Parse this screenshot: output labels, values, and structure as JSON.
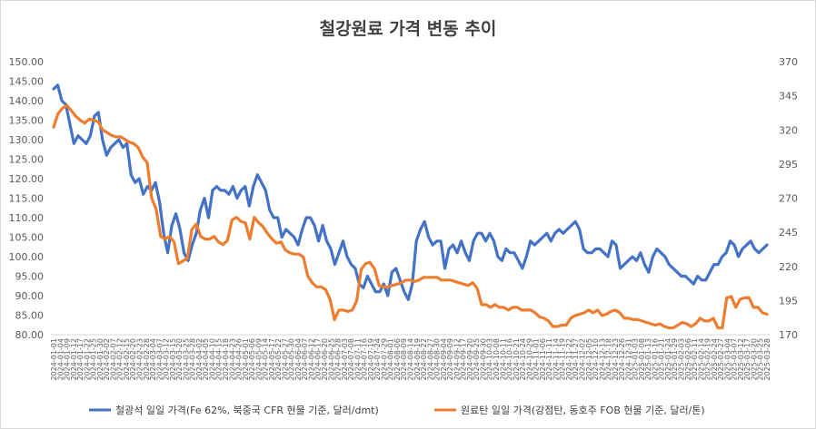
{
  "chart_data": {
    "type": "line",
    "title": "철강원료 가격 변동 추이",
    "y_left": {
      "min": 80,
      "max": 150,
      "ticks": [
        "150.00",
        "145.00",
        "140.00",
        "135.00",
        "130.00",
        "125.00",
        "120.00",
        "115.00",
        "110.00",
        "105.00",
        "100.00",
        "95.00",
        "90.00",
        "85.00",
        "80.00"
      ]
    },
    "y_right": {
      "min": 170,
      "max": 370,
      "ticks": [
        "370",
        "345",
        "320",
        "295",
        "270",
        "245",
        "220",
        "195",
        "170"
      ]
    },
    "x_range": [
      "2024-01-01",
      "2025-03-31"
    ],
    "series": [
      {
        "name": "철광석 일일 가격(Fe 62%, 북중국 CFR 현물 기준, 달러/dmt)",
        "color": "#4472c4",
        "axis": "left",
        "values": [
          143,
          144,
          140,
          139,
          134,
          129,
          131,
          130,
          129,
          131,
          136,
          137,
          130,
          126,
          128,
          129,
          130,
          128,
          129,
          121,
          119,
          120,
          116,
          118,
          117,
          119,
          114,
          106,
          101,
          108,
          111,
          107,
          101,
          99,
          103,
          106,
          112,
          115,
          110,
          117,
          118,
          117,
          117,
          116,
          118,
          115,
          117,
          118,
          113,
          118,
          121,
          119,
          117,
          112,
          110,
          110,
          105,
          107,
          106,
          105,
          103,
          107,
          110,
          110,
          108,
          104,
          108,
          104,
          102,
          98,
          101,
          104,
          100,
          98,
          97,
          93,
          92,
          95,
          93,
          91,
          91,
          93,
          90,
          96,
          97,
          94,
          91,
          89,
          93,
          104,
          107,
          109,
          105,
          103,
          104,
          104,
          97,
          102,
          103,
          101,
          104,
          101,
          99,
          104,
          106,
          106,
          104,
          106,
          104,
          100,
          99,
          102,
          101,
          101,
          99,
          97,
          100,
          104,
          103,
          104,
          105,
          106,
          104,
          106,
          107,
          106,
          107,
          108,
          109,
          107,
          102,
          101,
          101,
          102,
          102,
          101,
          100,
          104,
          103,
          97,
          98,
          99,
          100,
          99,
          101,
          98,
          96,
          100,
          102,
          101,
          100,
          98,
          97,
          96,
          95,
          95,
          94,
          93,
          95,
          94,
          94,
          96,
          98,
          98,
          100,
          101,
          104,
          103,
          100,
          102,
          103,
          104,
          102,
          101,
          102,
          103
        ]
      },
      {
        "name": "원료탄 일일 가격(강점탄, 동호주 FOB 현물 기준, 달러/톤)",
        "color": "#ed7d31",
        "axis": "right",
        "values": [
          322,
          332,
          336,
          338,
          334,
          330,
          327,
          325,
          328,
          327,
          326,
          320,
          318,
          316,
          315,
          315,
          313,
          311,
          310,
          307,
          300,
          296,
          270,
          262,
          242,
          240,
          242,
          238,
          222,
          224,
          226,
          247,
          251,
          242,
          240,
          240,
          242,
          238,
          236,
          239,
          254,
          256,
          253,
          252,
          240,
          256,
          252,
          249,
          244,
          240,
          237,
          238,
          232,
          230,
          229,
          229,
          227,
          213,
          208,
          205,
          205,
          203,
          196,
          181,
          188,
          188,
          187,
          188,
          195,
          218,
          222,
          223,
          218,
          206,
          205,
          205,
          206,
          207,
          208,
          210,
          210,
          209,
          210,
          212,
          212,
          212,
          212,
          210,
          210,
          210,
          209,
          208,
          207,
          206,
          208,
          204,
          192,
          192,
          190,
          192,
          190,
          190,
          188,
          190,
          190,
          188,
          188,
          188,
          186,
          183,
          182,
          180,
          176,
          176,
          177,
          177,
          182,
          184,
          185,
          186,
          188,
          186,
          188,
          184,
          185,
          187,
          188,
          186,
          182,
          182,
          181,
          181,
          180,
          179,
          178,
          177,
          178,
          176,
          175,
          175,
          177,
          179,
          178,
          176,
          178,
          182,
          180,
          180,
          182,
          175,
          175,
          197,
          198,
          190,
          196,
          197,
          197,
          190,
          190,
          186,
          185
        ]
      }
    ],
    "x_labels": [
      "2024-01-01",
      "2024-01-04",
      "2024-01-09",
      "2024-01-12",
      "2024-01-17",
      "2024-01-22",
      "2024-01-25",
      "2024-01-30",
      "2024-02-02",
      "2024-02-07",
      "2024-02-12",
      "2024-02-15",
      "2024-02-20",
      "2024-02-23",
      "2024-02-28",
      "2024-03-04",
      "2024-03-07",
      "2024-03-12",
      "2024-03-15",
      "2024-03-20",
      "2024-03-25",
      "2024-03-28",
      "2024-04-02",
      "2024-04-05",
      "2024-04-10",
      "2024-04-15",
      "2024-04-18",
      "2024-04-23",
      "2024-04-26",
      "2024-05-01",
      "2024-05-06",
      "2024-05-09",
      "2024-05-14",
      "2024-05-17",
      "2024-05-22",
      "2024-05-27",
      "2024-05-30",
      "2024-06-04",
      "2024-06-07",
      "2024-06-12",
      "2024-06-17",
      "2024-06-20",
      "2024-06-25",
      "2024-06-28",
      "2024-07-03",
      "2024-07-08",
      "2024-07-11",
      "2024-07-16",
      "2024-07-19",
      "2024-07-24",
      "2024-07-29",
      "2024-08-01",
      "2024-08-06",
      "2024-08-09",
      "2024-08-14",
      "2024-08-19",
      "2024-08-22",
      "2024-08-27",
      "2024-08-30",
      "2024-09-04",
      "2024-09-09",
      "2024-09-12",
      "2024-09-17",
      "2024-09-20",
      "2024-09-25",
      "2024-09-30",
      "2024-10-03",
      "2024-10-08",
      "2024-10-11",
      "2024-10-16",
      "2024-10-21",
      "2024-10-24",
      "2024-10-29",
      "2024-11-01",
      "2024-11-06",
      "2024-11-11",
      "2024-11-14",
      "2024-11-19",
      "2024-11-22",
      "2024-11-27",
      "2024-12-02",
      "2024-12-05",
      "2024-12-10",
      "2024-12-13",
      "2024-12-18",
      "2024-12-23",
      "2024-12-26",
      "2024-12-31",
      "2025-01-03",
      "2025-01-08",
      "2025-01-13",
      "2025-01-16",
      "2025-01-21",
      "2025-01-24",
      "2025-01-29",
      "2025-02-03",
      "2025-02-06",
      "2025-02-11",
      "2025-02-14",
      "2025-02-19",
      "2025-02-24",
      "2025-02-27",
      "2025-03-04",
      "2025-03-07",
      "2025-03-12",
      "2025-03-17",
      "2025-03-20",
      "2025-03-25",
      "2025-03-28"
    ],
    "grid": false,
    "legend_position": "bottom"
  }
}
